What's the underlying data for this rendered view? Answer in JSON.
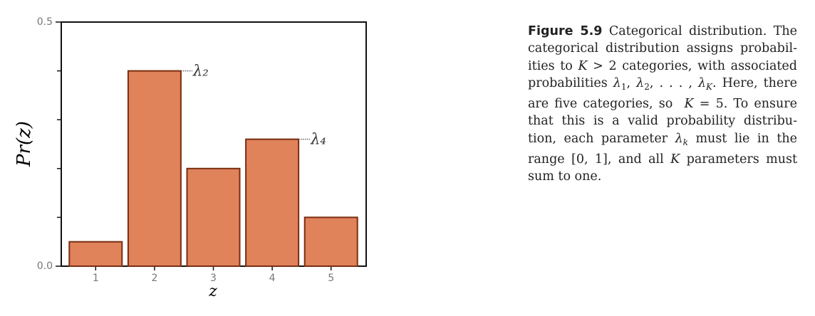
{
  "chart_data": {
    "type": "bar",
    "categories": [
      "1",
      "2",
      "3",
      "4",
      "5"
    ],
    "values": [
      0.05,
      0.4,
      0.2,
      0.26,
      0.1
    ],
    "color": "#e0825a",
    "edge_color": "#7a2e12",
    "x_label": "z",
    "y_label": "Pr(z)",
    "ylim": [
      0,
      0.5
    ],
    "yticks": [
      {
        "value": 0,
        "label": "0.0"
      },
      {
        "value": 0.5,
        "label": "0.5"
      }
    ],
    "yticks_minor": [
      0.1,
      0.2,
      0.3,
      0.4
    ],
    "annotations": [
      {
        "category": "2",
        "label": "λ₂"
      },
      {
        "category": "4",
        "label": "λ₄"
      }
    ]
  },
  "caption": {
    "label": "Figure 5.9",
    "lines": [
      [
        " Categorical distribution. The"
      ],
      [
        "categorical distribution assigns probabil-"
      ],
      [
        "ities to ",
        {
          "text": "K",
          "style": "math"
        },
        " > 2 categories, with associated"
      ],
      [
        "probabilities ",
        {
          "text": "λ",
          "style": "math"
        },
        {
          "text": "1",
          "style": "sub"
        },
        ", ",
        {
          "text": "λ",
          "style": "math"
        },
        {
          "text": "2",
          "style": "sub"
        },
        ", . . . , ",
        {
          "text": "λ",
          "style": "math"
        },
        {
          "text": "K",
          "style": "msub"
        },
        ". Here, there"
      ],
      [
        "are five categories, so  ",
        {
          "text": "K",
          "style": "math"
        },
        " = 5. To ensure"
      ],
      [
        "that this is a valid probability distribu-"
      ],
      [
        "tion, each parameter ",
        {
          "text": "λ",
          "style": "math"
        },
        {
          "text": "k",
          "style": "msub"
        },
        " must lie in the"
      ],
      [
        "range [0, 1], and all ",
        {
          "text": "K",
          "style": "math"
        },
        " parameters must"
      ],
      [
        "sum to one."
      ]
    ]
  }
}
